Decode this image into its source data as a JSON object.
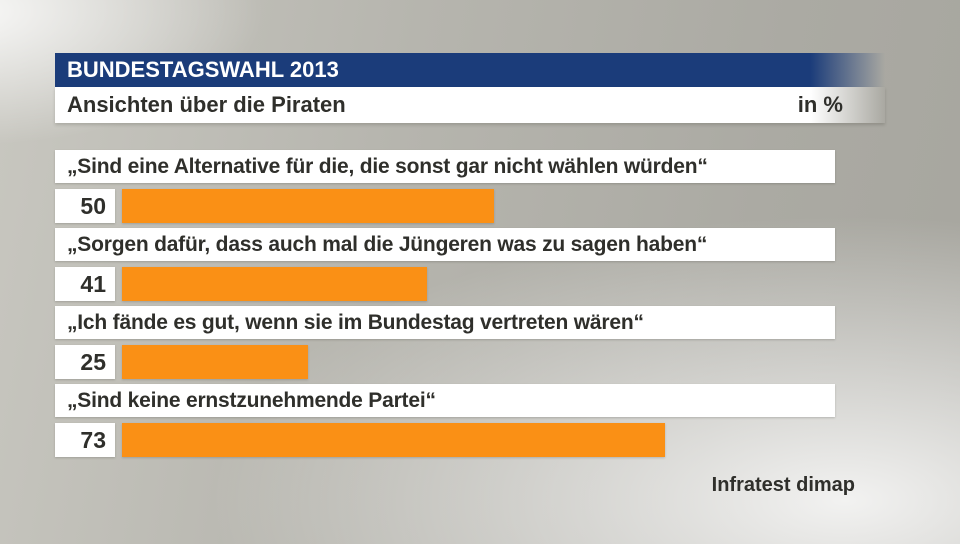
{
  "header": {
    "title": "BUNDESTAGSWAHL 2013",
    "subtitle": "Ansichten über die Piraten",
    "unit_label": "in %"
  },
  "source": "Infratest dimap",
  "colors": {
    "banner_blue": "#1b3c7a",
    "bar_orange": "#fa9015",
    "text_dark": "#2f2f2b",
    "label_bg": "#ffffff"
  },
  "chart_data": {
    "type": "bar",
    "orientation": "horizontal",
    "unit": "%",
    "title": "Ansichten über die Piraten",
    "subtitle": "BUNDESTAGSWAHL 2013",
    "categories": [
      "„Sind eine Alternative für die, die sonst gar nicht wählen würden“",
      "„Sorgen dafür, dass auch mal die Jüngeren was zu sagen haben“",
      "„Ich fände es gut, wenn sie im Bundestag vertreten wären“",
      "„Sind keine ernstzunehmende Partei“"
    ],
    "values": [
      50,
      41,
      25,
      73
    ],
    "xlim": [
      0,
      100
    ],
    "grid": false,
    "legend": false,
    "bar_color": "#fa9015",
    "source": "Infratest dimap"
  }
}
